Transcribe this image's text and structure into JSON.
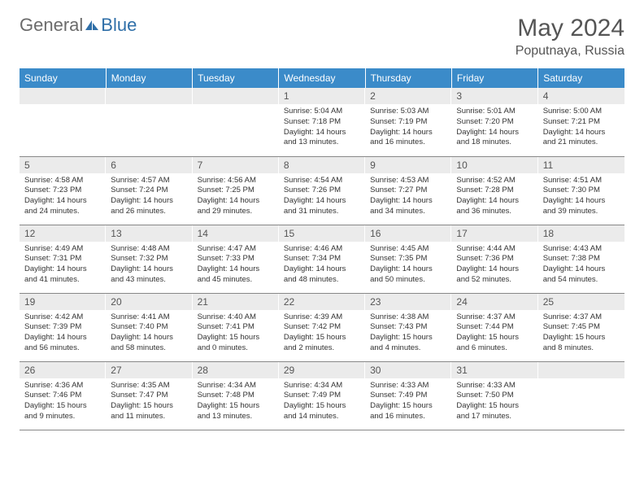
{
  "brand": {
    "part1": "General",
    "part2": "Blue"
  },
  "title": "May 2024",
  "location": "Poputnaya, Russia",
  "colors": {
    "header_bg": "#3b8bc9",
    "header_text": "#ffffff",
    "daynum_bg": "#ebebeb",
    "daynum_text": "#555555",
    "body_text": "#333333",
    "rule": "#888888",
    "brand_gray": "#6b6b6b",
    "brand_blue": "#2f6fa8",
    "page_bg": "#ffffff"
  },
  "typography": {
    "title_fontsize": 30,
    "location_fontsize": 16,
    "weekday_fontsize": 12,
    "daynum_fontsize": 12,
    "cell_fontsize": 9.5
  },
  "weekdays": [
    "Sunday",
    "Monday",
    "Tuesday",
    "Wednesday",
    "Thursday",
    "Friday",
    "Saturday"
  ],
  "weeks": [
    [
      null,
      null,
      null,
      {
        "n": "1",
        "sr": "5:04 AM",
        "ss": "7:18 PM",
        "dl": "14 hours and 13 minutes."
      },
      {
        "n": "2",
        "sr": "5:03 AM",
        "ss": "7:19 PM",
        "dl": "14 hours and 16 minutes."
      },
      {
        "n": "3",
        "sr": "5:01 AM",
        "ss": "7:20 PM",
        "dl": "14 hours and 18 minutes."
      },
      {
        "n": "4",
        "sr": "5:00 AM",
        "ss": "7:21 PM",
        "dl": "14 hours and 21 minutes."
      }
    ],
    [
      {
        "n": "5",
        "sr": "4:58 AM",
        "ss": "7:23 PM",
        "dl": "14 hours and 24 minutes."
      },
      {
        "n": "6",
        "sr": "4:57 AM",
        "ss": "7:24 PM",
        "dl": "14 hours and 26 minutes."
      },
      {
        "n": "7",
        "sr": "4:56 AM",
        "ss": "7:25 PM",
        "dl": "14 hours and 29 minutes."
      },
      {
        "n": "8",
        "sr": "4:54 AM",
        "ss": "7:26 PM",
        "dl": "14 hours and 31 minutes."
      },
      {
        "n": "9",
        "sr": "4:53 AM",
        "ss": "7:27 PM",
        "dl": "14 hours and 34 minutes."
      },
      {
        "n": "10",
        "sr": "4:52 AM",
        "ss": "7:28 PM",
        "dl": "14 hours and 36 minutes."
      },
      {
        "n": "11",
        "sr": "4:51 AM",
        "ss": "7:30 PM",
        "dl": "14 hours and 39 minutes."
      }
    ],
    [
      {
        "n": "12",
        "sr": "4:49 AM",
        "ss": "7:31 PM",
        "dl": "14 hours and 41 minutes."
      },
      {
        "n": "13",
        "sr": "4:48 AM",
        "ss": "7:32 PM",
        "dl": "14 hours and 43 minutes."
      },
      {
        "n": "14",
        "sr": "4:47 AM",
        "ss": "7:33 PM",
        "dl": "14 hours and 45 minutes."
      },
      {
        "n": "15",
        "sr": "4:46 AM",
        "ss": "7:34 PM",
        "dl": "14 hours and 48 minutes."
      },
      {
        "n": "16",
        "sr": "4:45 AM",
        "ss": "7:35 PM",
        "dl": "14 hours and 50 minutes."
      },
      {
        "n": "17",
        "sr": "4:44 AM",
        "ss": "7:36 PM",
        "dl": "14 hours and 52 minutes."
      },
      {
        "n": "18",
        "sr": "4:43 AM",
        "ss": "7:38 PM",
        "dl": "14 hours and 54 minutes."
      }
    ],
    [
      {
        "n": "19",
        "sr": "4:42 AM",
        "ss": "7:39 PM",
        "dl": "14 hours and 56 minutes."
      },
      {
        "n": "20",
        "sr": "4:41 AM",
        "ss": "7:40 PM",
        "dl": "14 hours and 58 minutes."
      },
      {
        "n": "21",
        "sr": "4:40 AM",
        "ss": "7:41 PM",
        "dl": "15 hours and 0 minutes."
      },
      {
        "n": "22",
        "sr": "4:39 AM",
        "ss": "7:42 PM",
        "dl": "15 hours and 2 minutes."
      },
      {
        "n": "23",
        "sr": "4:38 AM",
        "ss": "7:43 PM",
        "dl": "15 hours and 4 minutes."
      },
      {
        "n": "24",
        "sr": "4:37 AM",
        "ss": "7:44 PM",
        "dl": "15 hours and 6 minutes."
      },
      {
        "n": "25",
        "sr": "4:37 AM",
        "ss": "7:45 PM",
        "dl": "15 hours and 8 minutes."
      }
    ],
    [
      {
        "n": "26",
        "sr": "4:36 AM",
        "ss": "7:46 PM",
        "dl": "15 hours and 9 minutes."
      },
      {
        "n": "27",
        "sr": "4:35 AM",
        "ss": "7:47 PM",
        "dl": "15 hours and 11 minutes."
      },
      {
        "n": "28",
        "sr": "4:34 AM",
        "ss": "7:48 PM",
        "dl": "15 hours and 13 minutes."
      },
      {
        "n": "29",
        "sr": "4:34 AM",
        "ss": "7:49 PM",
        "dl": "15 hours and 14 minutes."
      },
      {
        "n": "30",
        "sr": "4:33 AM",
        "ss": "7:49 PM",
        "dl": "15 hours and 16 minutes."
      },
      {
        "n": "31",
        "sr": "4:33 AM",
        "ss": "7:50 PM",
        "dl": "15 hours and 17 minutes."
      },
      null
    ]
  ],
  "labels": {
    "sunrise": "Sunrise:",
    "sunset": "Sunset:",
    "daylight": "Daylight:"
  }
}
